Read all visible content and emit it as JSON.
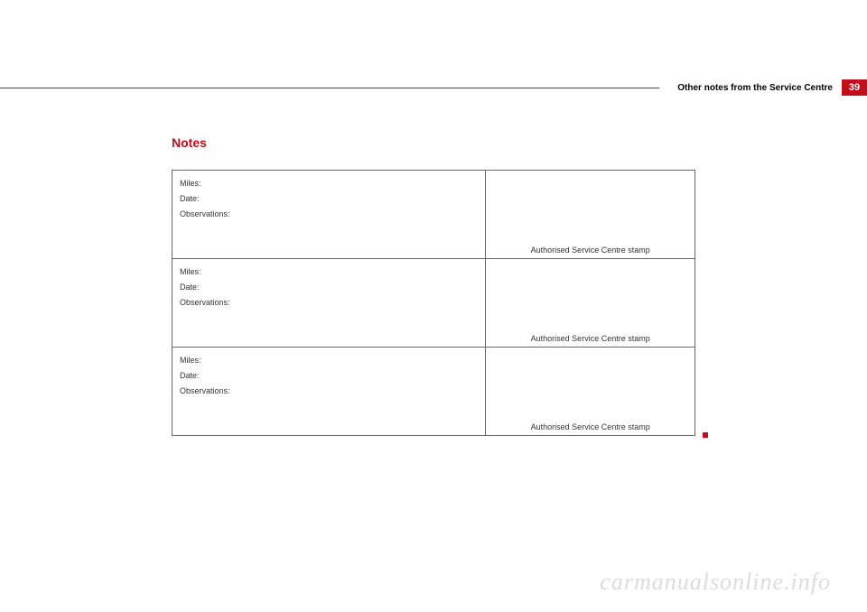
{
  "header": {
    "section_title": "Other notes from the Service Centre",
    "page_number": "39"
  },
  "content": {
    "title": "Notes",
    "rows": [
      {
        "miles_label": "Miles:",
        "date_label": "Date:",
        "observations_label": "Observations:",
        "stamp_label": "Authorised Service Centre stamp"
      },
      {
        "miles_label": "Miles:",
        "date_label": "Date:",
        "observations_label": "Observations:",
        "stamp_label": "Authorised Service Centre stamp"
      },
      {
        "miles_label": "Miles:",
        "date_label": "Date:",
        "observations_label": "Observations:",
        "stamp_label": "Authorised Service Centre stamp"
      }
    ]
  },
  "watermark": "carmanualsonline.info",
  "colors": {
    "accent": "#c20e1a",
    "border": "#666666",
    "text": "#333333",
    "watermark": "#dcdcdc"
  }
}
